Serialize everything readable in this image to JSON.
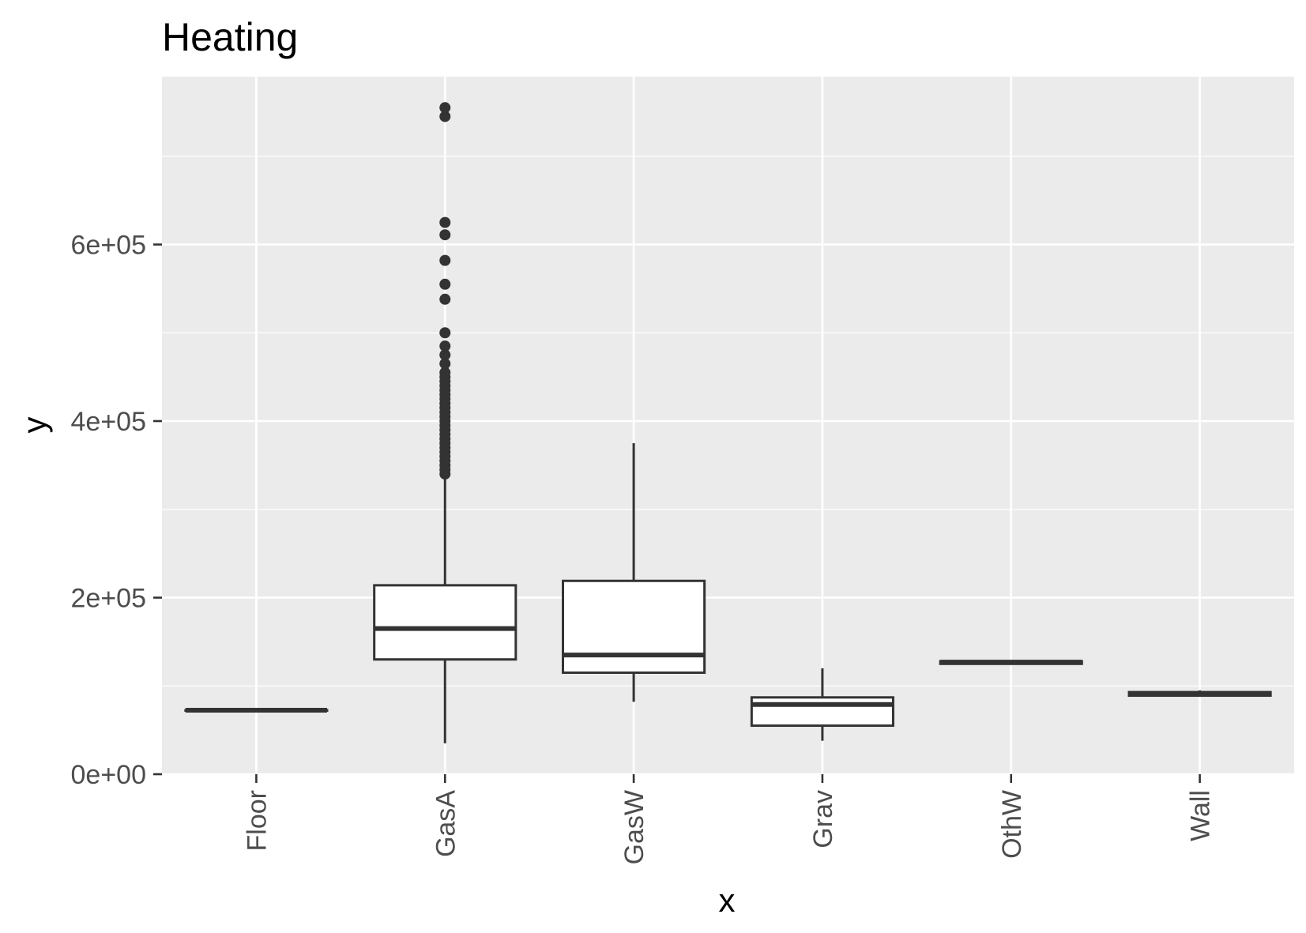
{
  "chart_data": {
    "type": "boxplot",
    "title": "Heating",
    "xlabel": "x",
    "ylabel": "y",
    "ylim": [
      0,
      780000
    ],
    "y_ticks": [
      0,
      200000,
      400000,
      600000
    ],
    "y_tick_labels": [
      "0e+00",
      "2e+05",
      "4e+05",
      "6e+05"
    ],
    "y_minor_ticks": [
      100000,
      300000,
      500000,
      700000
    ],
    "grid": true,
    "background": "#ebebeb",
    "grid_color": "#ffffff",
    "box_fill": "#ffffff",
    "line_color": "#333333",
    "categories": [
      "Floor",
      "GasA",
      "GasW",
      "Grav",
      "OthW",
      "Wall"
    ],
    "boxes": [
      {
        "category": "Floor",
        "min": 72500,
        "q1": 72500,
        "median": 72500,
        "q3": 72500,
        "max": 72500,
        "outliers": []
      },
      {
        "category": "GasA",
        "min": 35000,
        "q1": 130000,
        "median": 165000,
        "q3": 214000,
        "max": 335000,
        "outliers": [
          340000,
          345000,
          350000,
          355000,
          360000,
          365000,
          370000,
          375000,
          380000,
          385000,
          390000,
          395000,
          400000,
          405000,
          410000,
          415000,
          420000,
          425000,
          430000,
          435000,
          440000,
          445000,
          450000,
          455000,
          465000,
          475000,
          485000,
          500000,
          538000,
          555000,
          582000,
          611000,
          625000,
          745000,
          755000
        ]
      },
      {
        "category": "GasW",
        "min": 82000,
        "q1": 115000,
        "median": 135000,
        "q3": 219000,
        "max": 375000,
        "outliers": []
      },
      {
        "category": "Grav",
        "min": 37900,
        "q1": 55000,
        "median": 79000,
        "q3": 87000,
        "max": 120000,
        "outliers": []
      },
      {
        "category": "OthW",
        "min": 125000,
        "q1": 125000,
        "median": 127000,
        "q3": 128000,
        "max": 129000,
        "outliers": []
      },
      {
        "category": "Wall",
        "min": 89000,
        "q1": 89000,
        "median": 91000,
        "q3": 93000,
        "max": 95000,
        "outliers": []
      }
    ]
  }
}
